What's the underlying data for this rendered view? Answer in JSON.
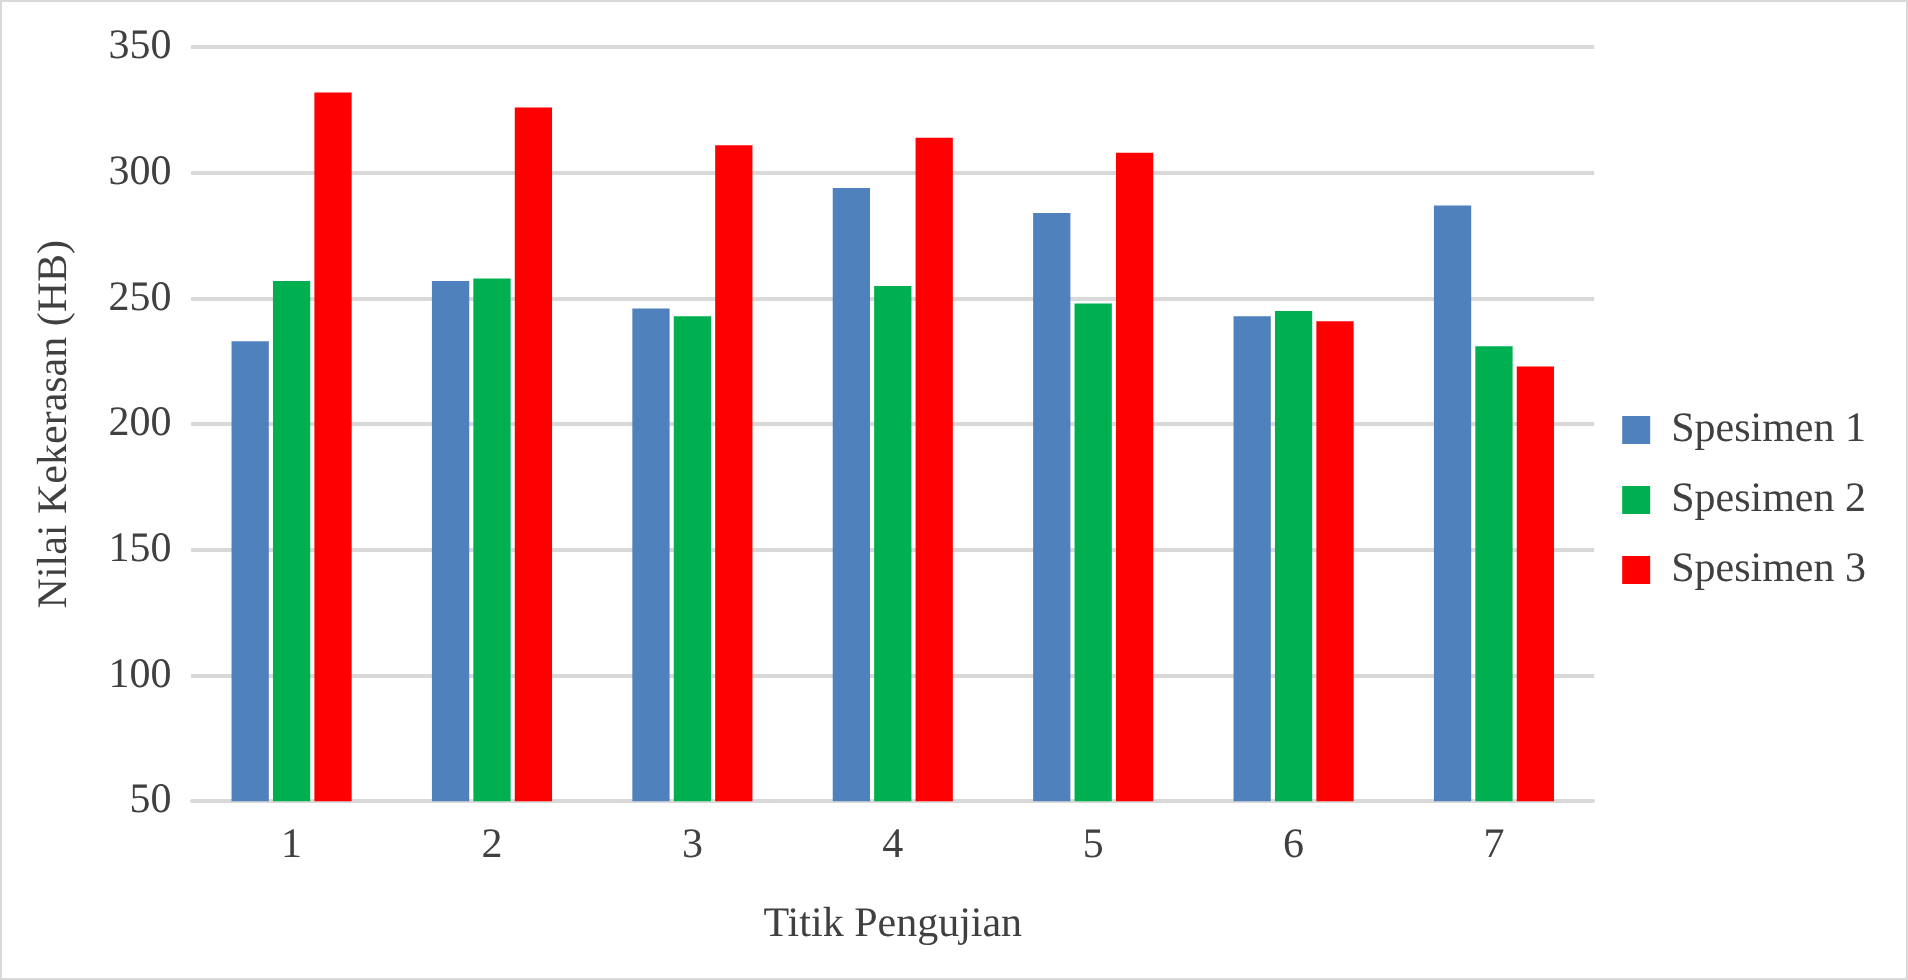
{
  "chart_data": {
    "type": "bar",
    "xlabel": "Titik Pengujian",
    "ylabel": "Nilai Kekerasan (HB)",
    "categories": [
      "1",
      "2",
      "3",
      "4",
      "5",
      "6",
      "7"
    ],
    "series": [
      {
        "name": "Spesimen 1",
        "color": "#4f81bd",
        "values": [
          233,
          257,
          246,
          294,
          284,
          243,
          287
        ]
      },
      {
        "name": "Spesimen 2",
        "color": "#00b050",
        "values": [
          257,
          258,
          243,
          255,
          248,
          245,
          231
        ]
      },
      {
        "name": "Spesimen 3",
        "color": "#ff0000",
        "values": [
          332,
          326,
          311,
          314,
          308,
          241,
          223
        ]
      }
    ],
    "ylim": [
      50,
      350
    ],
    "yticks": [
      50,
      100,
      150,
      200,
      250,
      300,
      350
    ],
    "grid": "y",
    "legend": "right"
  }
}
